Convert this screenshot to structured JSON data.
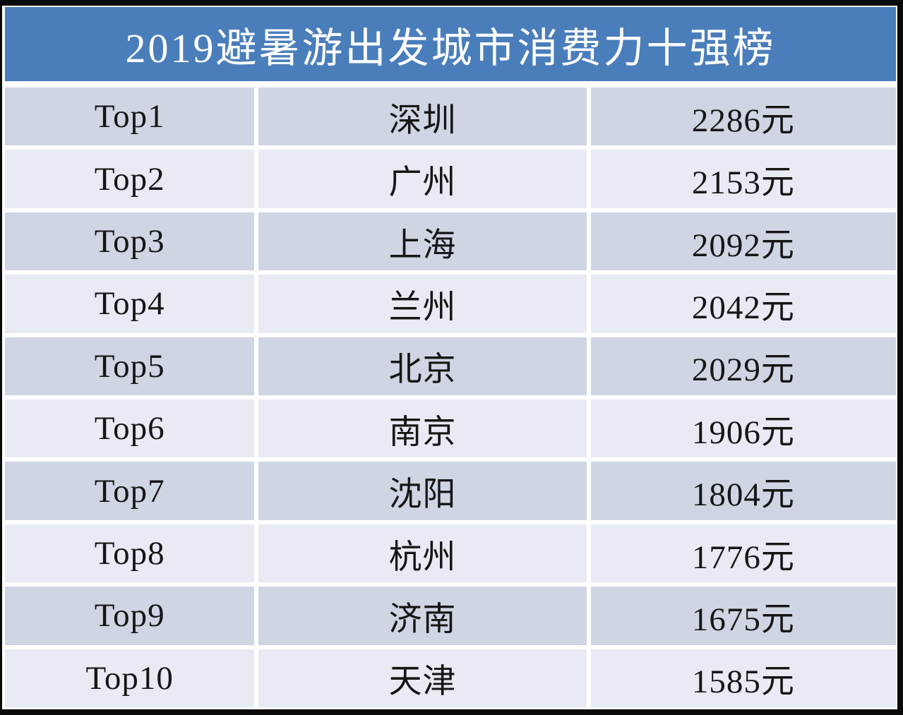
{
  "title": "2019避暑游出发城市消费力十强榜",
  "colors": {
    "title_bg": "#4a7ebb",
    "title_text": "#ffffff",
    "row_dark": "#cfd5e3",
    "row_light": "#e8ebf3",
    "frame": "#0a0a0a",
    "body_text": "#161616"
  },
  "rows": [
    {
      "rank": "Top1",
      "city": "深圳",
      "price": "2286元"
    },
    {
      "rank": "Top2",
      "city": "广州",
      "price": "2153元"
    },
    {
      "rank": "Top3",
      "city": "上海",
      "price": "2092元"
    },
    {
      "rank": "Top4",
      "city": "兰州",
      "price": "2042元"
    },
    {
      "rank": "Top5",
      "city": "北京",
      "price": "2029元"
    },
    {
      "rank": "Top6",
      "city": "南京",
      "price": "1906元"
    },
    {
      "rank": "Top7",
      "city": "沈阳",
      "price": "1804元"
    },
    {
      "rank": "Top8",
      "city": "杭州",
      "price": "1776元"
    },
    {
      "rank": "Top9",
      "city": "济南",
      "price": "1675元"
    },
    {
      "rank": "Top10",
      "city": "天津",
      "price": "1585元"
    }
  ],
  "chart_data": {
    "type": "table",
    "title": "2019避暑游出发城市消费力十强榜",
    "unit": "元",
    "rows": [
      [
        "Top1",
        "深圳",
        2286
      ],
      [
        "Top2",
        "广州",
        2153
      ],
      [
        "Top3",
        "上海",
        2092
      ],
      [
        "Top4",
        "兰州",
        2042
      ],
      [
        "Top5",
        "北京",
        2029
      ],
      [
        "Top6",
        "南京",
        1906
      ],
      [
        "Top7",
        "沈阳",
        1804
      ],
      [
        "Top8",
        "杭州",
        1776
      ],
      [
        "Top9",
        "济南",
        1675
      ],
      [
        "Top10",
        "天津",
        1585
      ]
    ]
  }
}
